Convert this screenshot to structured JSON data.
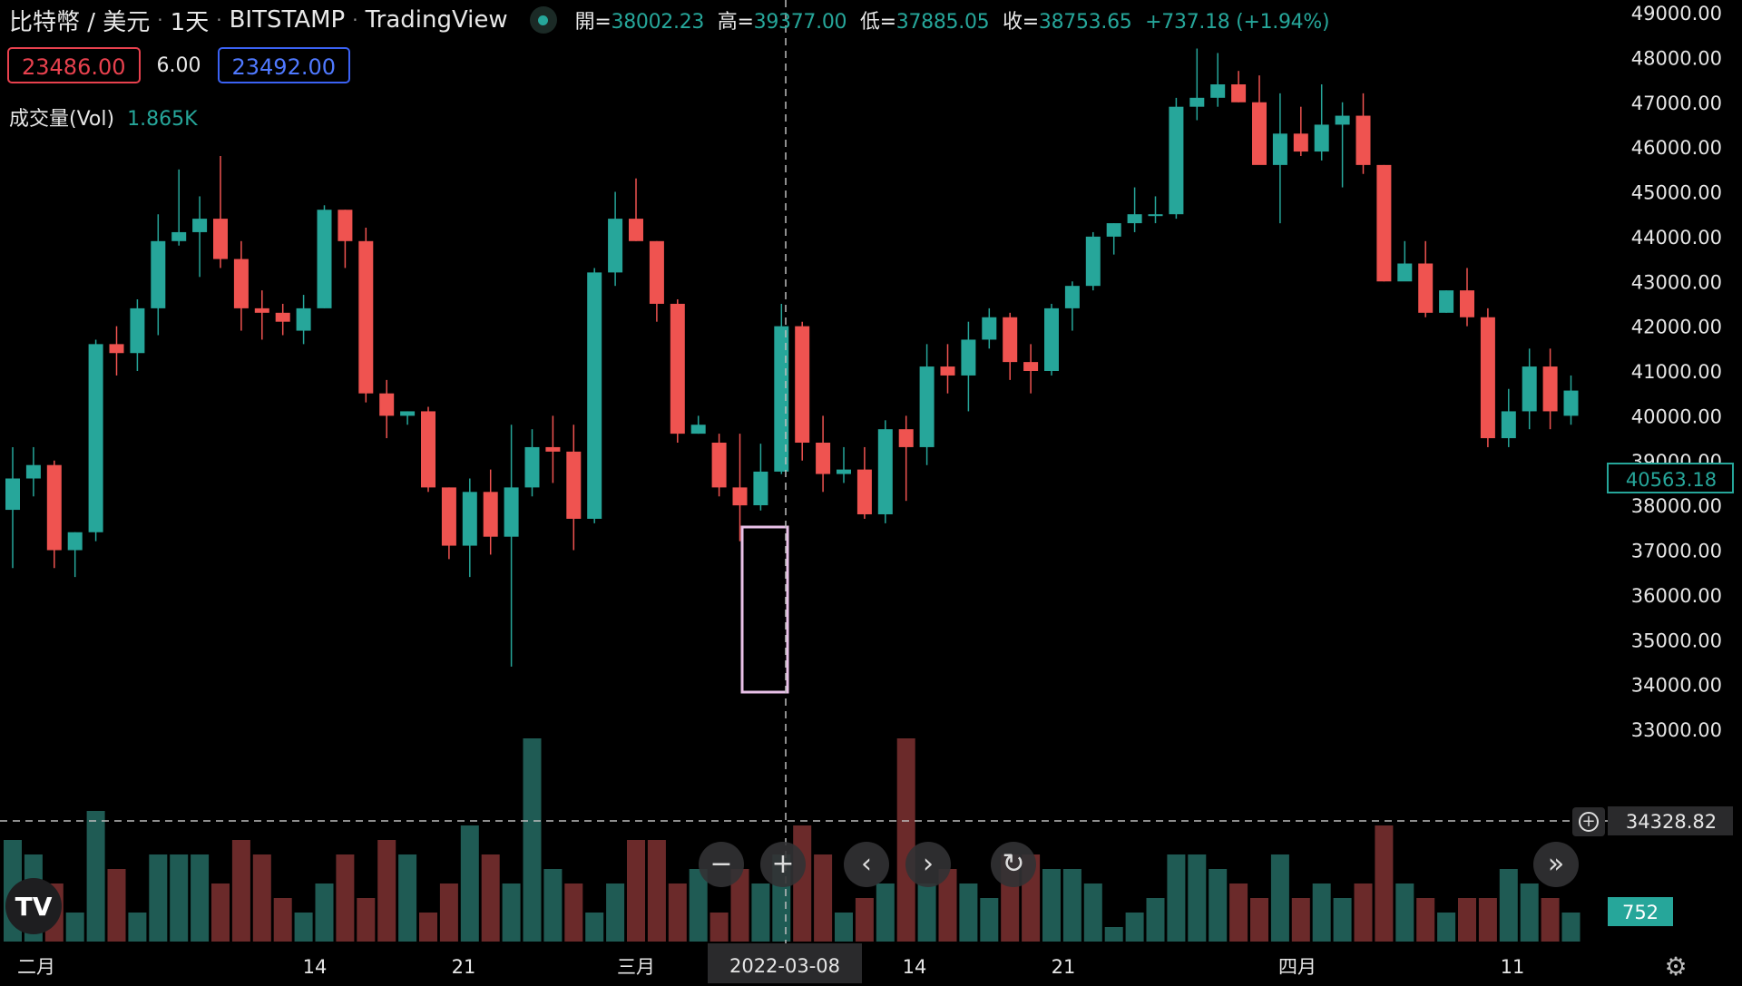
{
  "header": {
    "symbol": "比特幣 / 美元",
    "interval": "1天",
    "exchange": "BITSTAMP",
    "provider": "TradingView",
    "ohlc": [
      {
        "key": "開=",
        "value": "38002.23"
      },
      {
        "key": "高=",
        "value": "39377.00"
      },
      {
        "key": "低=",
        "value": "37885.05"
      },
      {
        "key": "收=",
        "value": "38753.65"
      }
    ],
    "change": "+737.18 (+1.94%)"
  },
  "quote": {
    "sell": "23486.00",
    "spread": "6.00",
    "buy": "23492.00"
  },
  "volume_indicator": {
    "label": "成交量(Vol)",
    "value": "1.865K"
  },
  "price_axis": {
    "labels": [
      "49000.00",
      "48000.00",
      "47000.00",
      "46000.00",
      "45000.00",
      "44000.00",
      "43000.00",
      "42000.00",
      "41000.00",
      "40000.00",
      "39000.00",
      "38000.00",
      "37000.00",
      "36000.00",
      "35000.00",
      "34000.00",
      "33000.00"
    ],
    "last_price_label": "40563.18",
    "crosshair_price_label": "34328.82",
    "volume_label": "752"
  },
  "time_axis": {
    "labels": [
      "二月",
      "14",
      "21",
      "三月",
      "14",
      "21",
      "四月",
      "11"
    ],
    "crosshair_date": "2022-03-08"
  },
  "colors": {
    "up": "#26a69a",
    "down": "#ef5350",
    "background": "#000000",
    "grid_text": "#e6e6e6",
    "highlight": "#e9c1e8"
  },
  "controls": {
    "zoom_out": "−",
    "zoom_in": "+",
    "scroll_left": "‹",
    "scroll_right": "›",
    "reset": "↻",
    "scroll_to_latest": "»",
    "settings": "⚙"
  },
  "logo_text": "TV",
  "chart_data": {
    "type": "candlestick",
    "series": [
      {
        "o": 37900,
        "h": 39300,
        "l": 36600,
        "c": 38600
      },
      {
        "o": 38600,
        "h": 39300,
        "l": 38200,
        "c": 38900
      },
      {
        "o": 38900,
        "h": 39000,
        "l": 36600,
        "c": 37000
      },
      {
        "o": 37000,
        "h": 37400,
        "l": 36400,
        "c": 37400
      },
      {
        "o": 37400,
        "h": 41700,
        "l": 37200,
        "c": 41600
      },
      {
        "o": 41600,
        "h": 42000,
        "l": 40900,
        "c": 41400
      },
      {
        "o": 41400,
        "h": 42600,
        "l": 41000,
        "c": 42400
      },
      {
        "o": 42400,
        "h": 44500,
        "l": 41800,
        "c": 43900
      },
      {
        "o": 43900,
        "h": 45500,
        "l": 43800,
        "c": 44100
      },
      {
        "o": 44100,
        "h": 44900,
        "l": 43100,
        "c": 44400
      },
      {
        "o": 44400,
        "h": 45800,
        "l": 43300,
        "c": 43500
      },
      {
        "o": 43500,
        "h": 43900,
        "l": 41900,
        "c": 42400
      },
      {
        "o": 42400,
        "h": 42800,
        "l": 41700,
        "c": 42300
      },
      {
        "o": 42300,
        "h": 42500,
        "l": 41800,
        "c": 42100
      },
      {
        "o": 41900,
        "h": 42700,
        "l": 41600,
        "c": 42400
      },
      {
        "o": 42400,
        "h": 44700,
        "l": 42400,
        "c": 44600
      },
      {
        "o": 44600,
        "h": 44600,
        "l": 43300,
        "c": 43900
      },
      {
        "o": 43900,
        "h": 44200,
        "l": 40300,
        "c": 40500
      },
      {
        "o": 40500,
        "h": 40800,
        "l": 39500,
        "c": 40000
      },
      {
        "o": 40000,
        "h": 40100,
        "l": 39800,
        "c": 40100
      },
      {
        "o": 40100,
        "h": 40200,
        "l": 38300,
        "c": 38400
      },
      {
        "o": 38400,
        "h": 38400,
        "l": 36800,
        "c": 37100
      },
      {
        "o": 37100,
        "h": 38600,
        "l": 36400,
        "c": 38300
      },
      {
        "o": 38300,
        "h": 38800,
        "l": 36900,
        "c": 37300
      },
      {
        "o": 37300,
        "h": 39800,
        "l": 34400,
        "c": 38400
      },
      {
        "o": 38400,
        "h": 39700,
        "l": 38200,
        "c": 39300
      },
      {
        "o": 39300,
        "h": 40000,
        "l": 38500,
        "c": 39200
      },
      {
        "o": 39200,
        "h": 39800,
        "l": 37000,
        "c": 37700
      },
      {
        "o": 37700,
        "h": 43300,
        "l": 37600,
        "c": 43200
      },
      {
        "o": 43200,
        "h": 45000,
        "l": 42900,
        "c": 44400
      },
      {
        "o": 44400,
        "h": 45300,
        "l": 43900,
        "c": 43900
      },
      {
        "o": 43900,
        "h": 43900,
        "l": 42100,
        "c": 42500
      },
      {
        "o": 42500,
        "h": 42600,
        "l": 39400,
        "c": 39600
      },
      {
        "o": 39600,
        "h": 40000,
        "l": 39600,
        "c": 39800
      },
      {
        "o": 39400,
        "h": 39600,
        "l": 38200,
        "c": 38400
      },
      {
        "o": 38400,
        "h": 39600,
        "l": 37200,
        "c": 38000
      },
      {
        "o": 38002.23,
        "h": 39377,
        "l": 37885.05,
        "c": 38753.65
      },
      {
        "o": 38753.65,
        "h": 42500,
        "l": 38700,
        "c": 42000
      },
      {
        "o": 42000,
        "h": 42100,
        "l": 39000,
        "c": 39400
      },
      {
        "o": 39400,
        "h": 40000,
        "l": 38300,
        "c": 38700
      },
      {
        "o": 38700,
        "h": 39300,
        "l": 38500,
        "c": 38800
      },
      {
        "o": 38800,
        "h": 39300,
        "l": 37700,
        "c": 37800
      },
      {
        "o": 37800,
        "h": 39900,
        "l": 37600,
        "c": 39700
      },
      {
        "o": 39700,
        "h": 40000,
        "l": 38100,
        "c": 39300
      },
      {
        "o": 39300,
        "h": 41600,
        "l": 38900,
        "c": 41100
      },
      {
        "o": 41100,
        "h": 41600,
        "l": 40500,
        "c": 40900
      },
      {
        "o": 40900,
        "h": 42100,
        "l": 40100,
        "c": 41700
      },
      {
        "o": 41700,
        "h": 42400,
        "l": 41500,
        "c": 42200
      },
      {
        "o": 42200,
        "h": 42300,
        "l": 40800,
        "c": 41200
      },
      {
        "o": 41200,
        "h": 41600,
        "l": 40500,
        "c": 41000
      },
      {
        "o": 41000,
        "h": 42500,
        "l": 40900,
        "c": 42400
      },
      {
        "o": 42400,
        "h": 43000,
        "l": 41900,
        "c": 42900
      },
      {
        "o": 42900,
        "h": 44100,
        "l": 42800,
        "c": 44000
      },
      {
        "o": 44000,
        "h": 44300,
        "l": 43600,
        "c": 44300
      },
      {
        "o": 44300,
        "h": 45100,
        "l": 44100,
        "c": 44500
      },
      {
        "o": 44500,
        "h": 44900,
        "l": 44300,
        "c": 44500
      },
      {
        "o": 44500,
        "h": 47100,
        "l": 44400,
        "c": 46900
      },
      {
        "o": 46900,
        "h": 48200,
        "l": 46600,
        "c": 47100
      },
      {
        "o": 47100,
        "h": 48100,
        "l": 46900,
        "c": 47400
      },
      {
        "o": 47400,
        "h": 47700,
        "l": 47000,
        "c": 47000
      },
      {
        "o": 47000,
        "h": 47600,
        "l": 45700,
        "c": 45600
      },
      {
        "o": 45600,
        "h": 47200,
        "l": 44300,
        "c": 46300
      },
      {
        "o": 46300,
        "h": 46900,
        "l": 45800,
        "c": 45900
      },
      {
        "o": 45900,
        "h": 47400,
        "l": 45700,
        "c": 46500
      },
      {
        "o": 46500,
        "h": 47000,
        "l": 45100,
        "c": 46700
      },
      {
        "o": 46700,
        "h": 47200,
        "l": 45400,
        "c": 45600
      },
      {
        "o": 45600,
        "h": 45600,
        "l": 43000,
        "c": 43000
      },
      {
        "o": 43000,
        "h": 43900,
        "l": 43100,
        "c": 43400
      },
      {
        "o": 43400,
        "h": 43900,
        "l": 42200,
        "c": 42300
      },
      {
        "o": 42300,
        "h": 42800,
        "l": 42300,
        "c": 42800
      },
      {
        "o": 42800,
        "h": 43300,
        "l": 42000,
        "c": 42200
      },
      {
        "o": 42200,
        "h": 42400,
        "l": 39300,
        "c": 39500
      },
      {
        "o": 39500,
        "h": 40600,
        "l": 39300,
        "c": 40100
      },
      {
        "o": 40100,
        "h": 41500,
        "l": 39700,
        "c": 41100
      },
      {
        "o": 41100,
        "h": 41500,
        "l": 39700,
        "c": 40100
      },
      {
        "o": 40000,
        "h": 40900,
        "l": 39800,
        "c": 40563.18
      }
    ],
    "volumes": [
      7,
      6,
      4,
      2,
      9,
      5,
      2,
      6,
      6,
      6,
      4,
      7,
      6,
      3,
      2,
      4,
      6,
      3,
      7,
      6,
      2,
      4,
      8,
      6,
      4,
      14,
      5,
      4,
      2,
      4,
      7,
      7,
      4,
      5,
      2,
      5,
      4,
      6,
      8,
      6,
      2,
      3,
      4,
      14,
      4,
      5,
      4,
      3,
      6,
      6,
      5,
      5,
      4,
      1,
      2,
      3,
      6,
      6,
      5,
      4,
      3,
      6,
      3,
      4,
      3,
      4,
      8,
      4,
      3,
      2,
      3,
      3,
      5,
      4,
      3,
      2
    ],
    "volume_up_flags": [
      1,
      1,
      0,
      1,
      1,
      0,
      1,
      1,
      1,
      1,
      0,
      0,
      0,
      0,
      1,
      1,
      0,
      0,
      0,
      1,
      0,
      0,
      1,
      0,
      1,
      1,
      1,
      0,
      1,
      1,
      0,
      0,
      0,
      1,
      0,
      0,
      1,
      1,
      0,
      0,
      1,
      0,
      1,
      0,
      1,
      0,
      1,
      1,
      0,
      0,
      1,
      1,
      1,
      1,
      1,
      1,
      1,
      1,
      1,
      0,
      0,
      1,
      0,
      1,
      1,
      0,
      0,
      1,
      0,
      1,
      0,
      0,
      1,
      1,
      0,
      1
    ],
    "y_range": [
      32700,
      49200
    ],
    "x_labels": [
      "二月",
      "14",
      "21",
      "三月",
      "14",
      "21",
      "四月",
      "11"
    ]
  }
}
